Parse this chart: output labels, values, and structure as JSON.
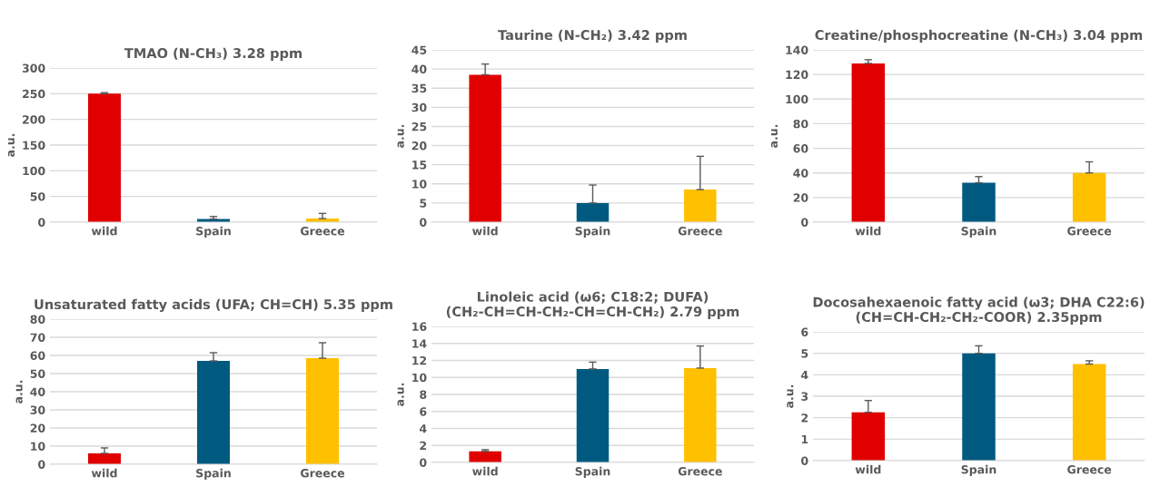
{
  "chart_data": [
    {
      "type": "bar",
      "title": "TMAO (N-CH₃) 3.28 ppm",
      "ylabel": "a.u.",
      "categories": [
        "wild",
        "Spain",
        "Greece"
      ],
      "values": [
        250,
        6,
        7
      ],
      "errors": [
        [
          250,
          252
        ],
        [
          6,
          11
        ],
        [
          7,
          17
        ]
      ],
      "colors": [
        "#e00000",
        "#005a80",
        "#ffc000"
      ],
      "ylim": [
        0,
        300
      ],
      "yticks": [
        0,
        50,
        100,
        150,
        200,
        250,
        300
      ],
      "grid": "y"
    },
    {
      "type": "bar",
      "title": "Taurine (N-CH₂) 3.42 ppm",
      "ylabel": "a.u.",
      "categories": [
        "wild",
        "Spain",
        "Greece"
      ],
      "values": [
        38.5,
        5,
        8.5
      ],
      "errors": [
        [
          38.5,
          41.3
        ],
        [
          5,
          9.7
        ],
        [
          8.5,
          17.2
        ]
      ],
      "colors": [
        "#e00000",
        "#005a80",
        "#ffc000"
      ],
      "ylim": [
        0,
        45
      ],
      "yticks": [
        0,
        5,
        10,
        15,
        20,
        25,
        30,
        35,
        40,
        45
      ],
      "grid": "y"
    },
    {
      "type": "bar",
      "title": "Creatine/phosphocreatine (N-CH₃) 3.04 ppm",
      "ylabel": "a.u.",
      "categories": [
        "wild",
        "Spain",
        "Greece"
      ],
      "values": [
        129,
        32,
        40
      ],
      "errors": [
        [
          129,
          132
        ],
        [
          32,
          37
        ],
        [
          40,
          49
        ]
      ],
      "colors": [
        "#e00000",
        "#005a80",
        "#ffc000"
      ],
      "ylim": [
        0,
        140
      ],
      "yticks": [
        0,
        20,
        40,
        60,
        80,
        100,
        120,
        140
      ],
      "grid": "y"
    },
    {
      "type": "bar",
      "title": "Unsaturated fatty acids (UFA; CH=CH) 5.35 ppm",
      "ylabel": "a.u.",
      "categories": [
        "wild",
        "Spain",
        "Greece"
      ],
      "values": [
        6,
        57,
        58.5
      ],
      "errors": [
        [
          6,
          9
        ],
        [
          57,
          61.5
        ],
        [
          58.5,
          67
        ]
      ],
      "colors": [
        "#e00000",
        "#005a80",
        "#ffc000"
      ],
      "ylim": [
        0,
        80
      ],
      "yticks": [
        0,
        10,
        20,
        30,
        40,
        50,
        60,
        70,
        80
      ],
      "grid": "y"
    },
    {
      "type": "bar",
      "title": "Linoleic acid (ω6; C18:2; DUFA)\n(CH₂-CH=CH-CH₂-CH=CH-CH₂) 2.79 ppm",
      "ylabel": "a.u.",
      "categories": [
        "wild",
        "Spain",
        "Greece"
      ],
      "values": [
        1.3,
        11,
        11.1
      ],
      "errors": [
        [
          1.3,
          1.5
        ],
        [
          11,
          11.8
        ],
        [
          11.1,
          13.7
        ]
      ],
      "colors": [
        "#e00000",
        "#005a80",
        "#ffc000"
      ],
      "ylim": [
        0,
        16
      ],
      "yticks": [
        0,
        2,
        4,
        6,
        8,
        10,
        12,
        14,
        16
      ],
      "grid": "y"
    },
    {
      "type": "bar",
      "title": "Docosahexaenoic fatty acid (ω3; DHA C22:6)\n(CH=CH-CH₂-CH₂-COOR) 2.35ppm",
      "ylabel": "a.u.",
      "categories": [
        "wild",
        "Spain",
        "Greece"
      ],
      "values": [
        2.25,
        5,
        4.5
      ],
      "errors": [
        [
          2.25,
          2.8
        ],
        [
          5,
          5.35
        ],
        [
          4.5,
          4.65
        ]
      ],
      "colors": [
        "#e00000",
        "#005a80",
        "#ffc000"
      ],
      "ylim": [
        0,
        6
      ],
      "yticks": [
        0,
        1,
        2,
        3,
        4,
        5,
        6
      ],
      "grid": "y"
    }
  ]
}
